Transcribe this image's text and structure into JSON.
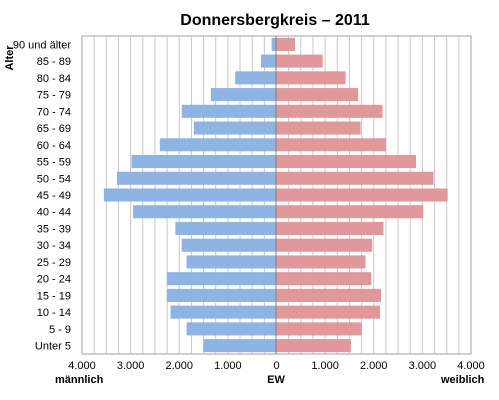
{
  "chart_data": {
    "type": "bar",
    "orientation": "horizontal",
    "layout": "population-pyramid",
    "title": "Donnersbergkreis – 2011",
    "ylabel": "Alter",
    "xlabel": "EW",
    "left_label": "männlich",
    "right_label": "weiblich",
    "categories": [
      "90 und älter",
      "85 - 89",
      "80 - 84",
      "75 - 79",
      "70 - 74",
      "65 - 69",
      "60 - 64",
      "55 - 59",
      "50 - 54",
      "45 - 49",
      "40 - 44",
      "35 - 39",
      "30 - 34",
      "25 - 29",
      "20 - 24",
      "15 - 19",
      "10 - 14",
      "5 - 9",
      "Unter 5"
    ],
    "series": [
      {
        "values": [
          100,
          320,
          850,
          1350,
          1950,
          1700,
          2400,
          2980,
          3280,
          3550,
          2950,
          2080,
          1950,
          1850,
          2250,
          2250,
          2180,
          1850,
          1500
        ],
        "color": "#8db4e3"
      },
      {
        "values": [
          380,
          950,
          1420,
          1680,
          2180,
          1730,
          2250,
          2870,
          3230,
          3520,
          3020,
          2200,
          1970,
          1830,
          1950,
          2150,
          2130,
          1750,
          1530
        ],
        "color": "#e0989a"
      }
    ],
    "xlim": [
      -4000,
      4000
    ],
    "x_ticks": [
      -4000,
      -3000,
      -2000,
      -1000,
      0,
      1000,
      2000,
      3000,
      4000
    ],
    "x_tick_labels": [
      "4.000",
      "3.000",
      "2.000",
      "1.000",
      "0",
      "1.000",
      "2.000",
      "3.000",
      "4.000"
    ],
    "grid": true,
    "grid_step": 250,
    "legend": "none"
  }
}
